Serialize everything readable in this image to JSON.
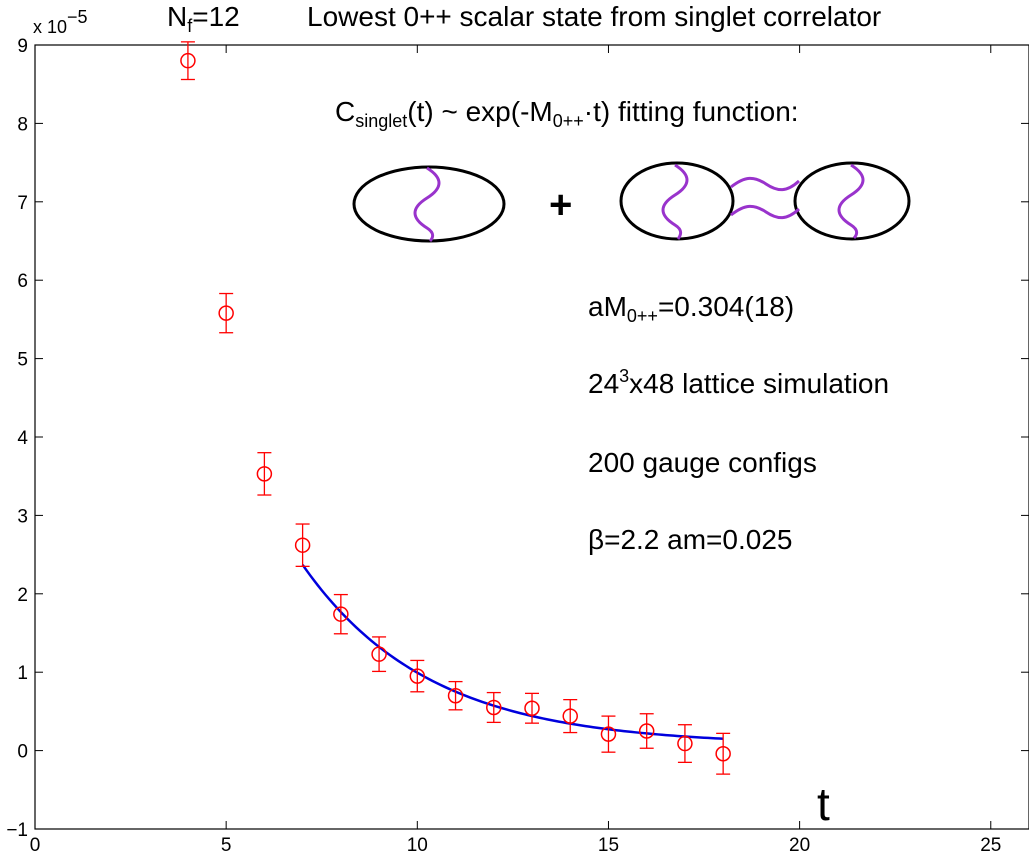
{
  "chart_data": {
    "type": "scatter",
    "title_prefix": "N",
    "title_sub": "f",
    "title_value": "=12",
    "title": "Lowest 0++ scalar state from singlet correlator",
    "xlabel": "t",
    "ylabel": "",
    "y_scale_label": "x 10",
    "y_scale_exponent": "−5",
    "xlim": [
      0,
      26
    ],
    "ylim": [
      -1,
      9
    ],
    "xticks": [
      0,
      5,
      10,
      15,
      20,
      25
    ],
    "yticks": [
      -1,
      0,
      1,
      2,
      3,
      4,
      5,
      6,
      7,
      8,
      9
    ],
    "xtick_labels": [
      "0",
      "5",
      "10",
      "15",
      "20",
      "25"
    ],
    "ytick_labels": [
      "−1",
      "0",
      "1",
      "2",
      "3",
      "4",
      "5",
      "6",
      "7",
      "8",
      "9"
    ],
    "series": [
      {
        "name": "data",
        "color": "#ff0000",
        "marker": "circle",
        "x": [
          4,
          5,
          6,
          7,
          8,
          9,
          10,
          11,
          12,
          13,
          14,
          15,
          16,
          17,
          18
        ],
        "y": [
          8.8,
          5.58,
          3.53,
          2.62,
          1.74,
          1.23,
          0.95,
          0.7,
          0.55,
          0.54,
          0.44,
          0.21,
          0.25,
          0.09,
          -0.04
        ],
        "err": [
          0.24,
          0.25,
          0.27,
          0.27,
          0.25,
          0.22,
          0.2,
          0.18,
          0.19,
          0.19,
          0.21,
          0.23,
          0.22,
          0.24,
          0.26
        ]
      },
      {
        "name": "fit",
        "color": "#0000dd",
        "type": "line",
        "x_range": [
          7,
          18
        ],
        "amplitude": 2.3,
        "mass": 0.304,
        "offset": 0.07
      }
    ],
    "annotations": {
      "fit_label_pre": "C",
      "fit_label_sub": "singlet",
      "fit_label_mid": "(t)  ~ exp(-M",
      "fit_label_sub2": "0++",
      "fit_label_post": "·t)  fitting function:",
      "plus": "+",
      "mass_pre": "aM",
      "mass_sub": "0++",
      "mass_post": "=0.304(18)",
      "lattice_pre": "24",
      "lattice_sup": "3",
      "lattice_post": "x48 lattice  simulation",
      "configs": "200 gauge configs",
      "params": "β=2.2   am=0.025"
    },
    "diagram_colors": {
      "ellipse": "#000000",
      "wave": "#9933cc"
    }
  }
}
